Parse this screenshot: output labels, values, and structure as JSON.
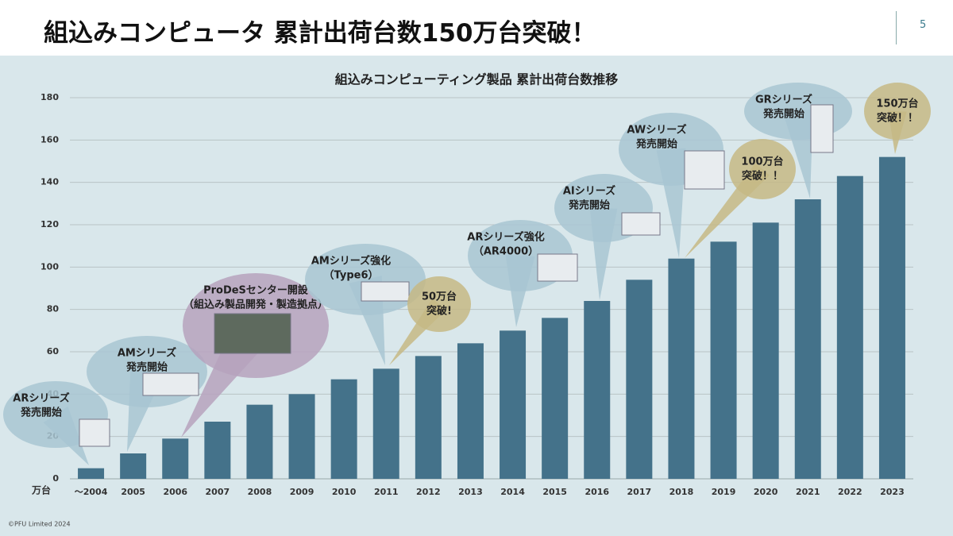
{
  "header": {
    "title": "組込みコンピュータ 累計出荷台数150万台突破！",
    "page_number": "5"
  },
  "chart_data": {
    "type": "bar",
    "title": "組込みコンピューティング製品 累計出荷台数推移",
    "y_unit": "万台",
    "categories": [
      "～2004",
      "2005",
      "2006",
      "2007",
      "2008",
      "2009",
      "2010",
      "2011",
      "2012",
      "2013",
      "2014",
      "2015",
      "2016",
      "2017",
      "2018",
      "2019",
      "2020",
      "2021",
      "2022",
      "2023"
    ],
    "values": [
      5,
      12,
      19,
      27,
      35,
      40,
      47,
      52,
      58,
      64,
      70,
      76,
      84,
      94,
      104,
      112,
      121,
      132,
      143,
      152
    ],
    "color": "#44728a",
    "ylim": [
      0,
      180
    ],
    "yticks": [
      0,
      20,
      40,
      60,
      80,
      100,
      120,
      140,
      160,
      180
    ],
    "grid": true,
    "annotations": [
      [
        "ARシリーズ",
        "発売開始"
      ],
      [
        "AMシリーズ",
        "発売開始"
      ],
      [
        "ProDeSセンター開設",
        "（組込み製品開発・製造拠点）"
      ],
      [
        "AMシリーズ強化",
        "（Type6）"
      ],
      [
        "50万台",
        "突破!"
      ],
      [
        "ARシリーズ強化",
        "（AR4000）"
      ],
      [
        "AIシリーズ",
        "発売開始"
      ],
      [
        "AWシリーズ",
        "発売開始"
      ],
      [
        "100万台",
        "突破！！"
      ],
      [
        "GRシリーズ",
        "発売開始"
      ],
      [
        "150万台",
        "突破！！"
      ]
    ]
  },
  "footer": "©PFU Limited 2024"
}
